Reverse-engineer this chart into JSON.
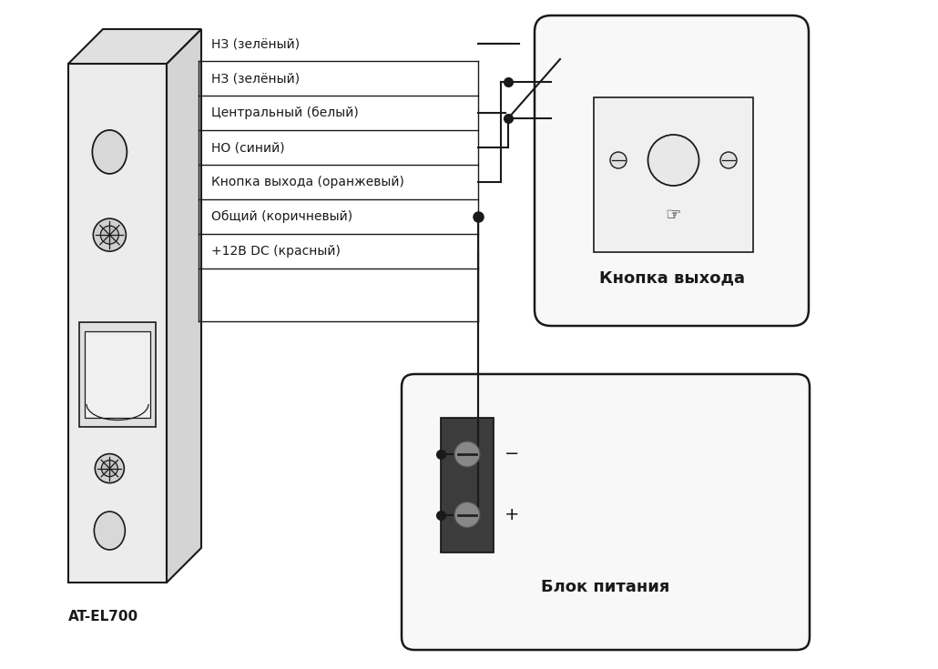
{
  "bg_color": "#ffffff",
  "line_color": "#1a1a1a",
  "text_color": "#1a1a1a",
  "wire_labels": [
    "НЗ (зелёный)",
    "Центральный (белый)",
    "НО (синий)",
    "Кнопка выхода (оранжевый)",
    "Общий (коричневый)",
    "+12В DC (красный)"
  ],
  "label_at_el700": "AT-EL700",
  "label_button": "Кнопка выхода",
  "label_psu": "Блок питания",
  "figsize": [
    10.3,
    7.35
  ],
  "dpi": 100
}
